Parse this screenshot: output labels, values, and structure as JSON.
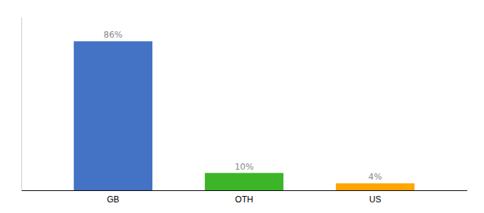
{
  "chart_data": {
    "type": "bar",
    "categories": [
      "GB",
      "OTH",
      "US"
    ],
    "values": [
      86,
      10,
      4
    ],
    "value_labels": [
      "86%",
      "10%",
      "4%"
    ],
    "colors": [
      "#4472C4",
      "#3CB528",
      "#FFA500"
    ],
    "ylim": [
      0,
      100
    ],
    "data_labels": true,
    "tick_labels": "x",
    "grid": false
  }
}
